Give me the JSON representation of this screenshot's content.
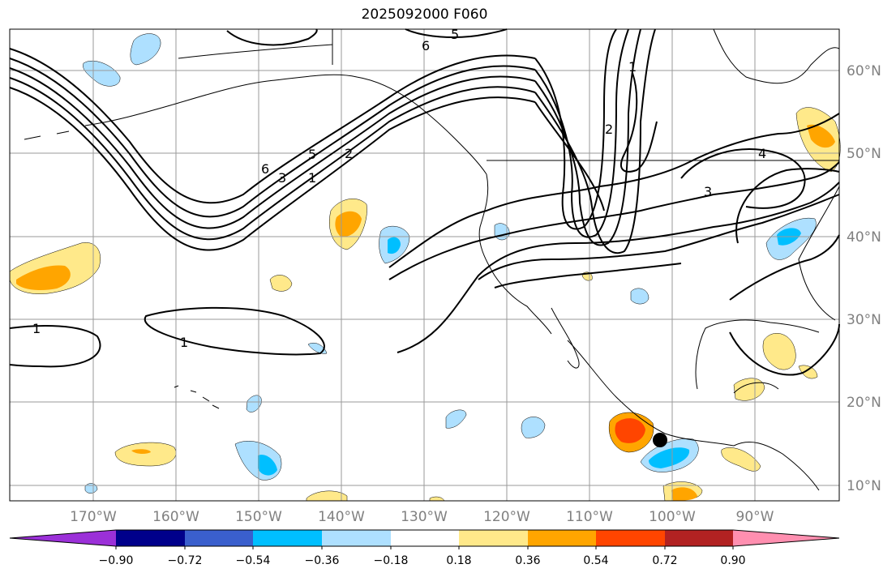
{
  "title": "2025092000 F060",
  "colors": {
    "land_line": "#000000",
    "contour": "#000000",
    "grid": "#9a9a9a",
    "storm_marker": "#000000"
  },
  "lon_labels": [
    "170°W",
    "160°W",
    "150°W",
    "140°W",
    "130°W",
    "120°W",
    "110°W",
    "100°W",
    "90°W"
  ],
  "lat_labels": [
    "60°N",
    "50°N",
    "40°N",
    "30°N",
    "20°N",
    "10°N"
  ],
  "contour_labels": [
    "1",
    "2",
    "3",
    "4",
    "5",
    "6"
  ],
  "colorbar": {
    "ticks": [
      "−0.90",
      "−0.72",
      "−0.54",
      "−0.36",
      "−0.18",
      "0.18",
      "0.36",
      "0.54",
      "0.72",
      "0.90"
    ],
    "colors": [
      "#9b30d8",
      "#00008b",
      "#3a5fcd",
      "#00bfff",
      "#aee0ff",
      "#ffffff",
      "#ffe98a",
      "#ffa500",
      "#ff4500",
      "#b22222",
      "#ff8fb0"
    ]
  }
}
